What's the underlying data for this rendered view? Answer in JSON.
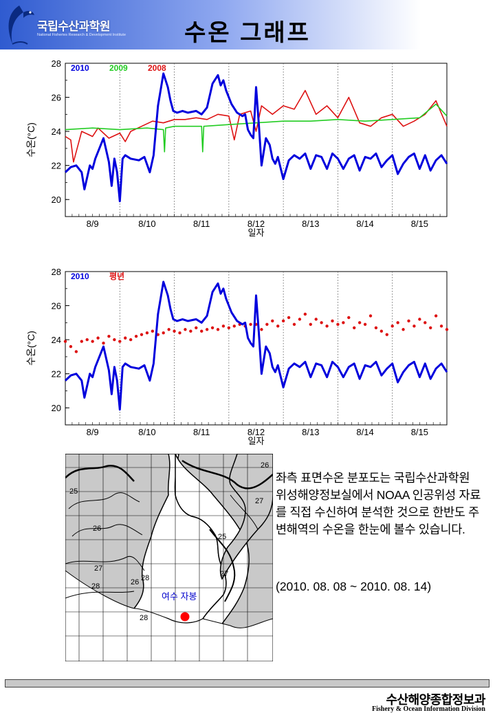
{
  "header": {
    "org_name": "국립수산과학원",
    "org_sub": "National Fisheries Research & Development Institute",
    "title": "수온 그래프"
  },
  "chart_data": [
    {
      "type": "line",
      "ylabel": "수온(°C)",
      "xlabel": "일자",
      "ylim": [
        19,
        28
      ],
      "yticks": [
        20,
        22,
        24,
        26,
        28
      ],
      "xlim": [
        0,
        7
      ],
      "xtick_labels": [
        "8/9",
        "8/10",
        "8/11",
        "8/12",
        "8/13",
        "8/14",
        "8/15"
      ],
      "grid": "vertical dotted day dividers",
      "legend_placement": "top-left",
      "series": [
        {
          "name": "2010",
          "color": "#0000dd",
          "x": [
            0,
            0.1,
            0.2,
            0.3,
            0.35,
            0.45,
            0.5,
            0.55,
            0.6,
            0.7,
            0.8,
            0.85,
            0.9,
            0.95,
            1.0,
            1.05,
            1.1,
            1.2,
            1.35,
            1.45,
            1.55,
            1.62,
            1.7,
            1.8,
            1.88,
            1.93,
            1.98,
            2.05,
            2.15,
            2.25,
            2.4,
            2.5,
            2.6,
            2.7,
            2.8,
            2.85,
            2.9,
            2.95,
            3.05,
            3.15,
            3.25,
            3.3,
            3.35,
            3.4,
            3.45,
            3.5,
            3.55,
            3.6,
            3.68,
            3.75,
            3.8,
            3.85,
            3.9,
            4.0,
            4.1,
            4.2,
            4.3,
            4.4,
            4.5,
            4.6,
            4.7,
            4.8,
            4.9,
            5.0,
            5.1,
            5.2,
            5.3,
            5.4,
            5.5,
            5.6,
            5.7,
            5.8,
            5.9,
            6.0,
            6.1,
            6.2,
            6.3,
            6.4,
            6.5,
            6.6,
            6.7,
            6.8,
            6.9,
            7.0
          ],
          "y": [
            21.6,
            21.9,
            22.0,
            21.6,
            20.6,
            22.0,
            21.8,
            22.4,
            22.8,
            23.6,
            22.2,
            20.8,
            22.4,
            21.6,
            19.9,
            22.4,
            22.6,
            22.4,
            22.3,
            22.5,
            21.6,
            22.6,
            25.5,
            27.4,
            26.6,
            25.8,
            25.2,
            25.1,
            25.2,
            25.1,
            25.2,
            25.0,
            25.4,
            26.8,
            27.3,
            26.7,
            27.0,
            26.4,
            25.6,
            25.1,
            24.9,
            25.0,
            24.1,
            23.8,
            23.6,
            26.6,
            24.4,
            22.0,
            23.6,
            23.2,
            22.4,
            22.1,
            22.5,
            21.2,
            22.3,
            22.6,
            22.4,
            22.7,
            21.8,
            22.6,
            22.5,
            21.8,
            22.7,
            22.4,
            21.8,
            22.4,
            22.6,
            21.7,
            22.5,
            22.4,
            22.7,
            21.9,
            22.3,
            22.6,
            21.5,
            22.1,
            22.5,
            22.7,
            21.8,
            22.6,
            21.7,
            22.3,
            22.6,
            22.1
          ]
        },
        {
          "name": "2009",
          "color": "#22cc22",
          "x": [
            0,
            0.5,
            1.0,
            1.5,
            1.8,
            1.82,
            1.84,
            2.0,
            2.4,
            2.5,
            2.52,
            2.54,
            3.0,
            3.5,
            4.0,
            4.5,
            5.0,
            5.5,
            6.0,
            6.5,
            6.8,
            7.0
          ],
          "y": [
            24.1,
            24.2,
            24.1,
            24.2,
            24.1,
            22.8,
            24.2,
            24.3,
            24.3,
            24.3,
            22.8,
            24.3,
            24.4,
            24.5,
            24.6,
            24.6,
            24.7,
            24.6,
            24.7,
            24.8,
            25.6,
            24.9
          ]
        },
        {
          "name": "2008",
          "color": "#dd1111",
          "x": [
            0,
            0.1,
            0.15,
            0.3,
            0.5,
            0.6,
            0.8,
            1.0,
            1.1,
            1.2,
            1.4,
            1.6,
            1.8,
            2.0,
            2.2,
            2.4,
            2.6,
            2.8,
            3.0,
            3.1,
            3.2,
            3.4,
            3.5,
            3.6,
            3.8,
            4.0,
            4.2,
            4.4,
            4.6,
            4.8,
            5.0,
            5.2,
            5.4,
            5.6,
            5.8,
            6.0,
            6.2,
            6.4,
            6.6,
            6.8,
            7.0
          ],
          "y": [
            23.7,
            23.5,
            22.2,
            24.0,
            23.7,
            24.2,
            23.6,
            23.9,
            23.4,
            24.0,
            24.3,
            24.6,
            24.5,
            24.7,
            24.7,
            24.8,
            24.7,
            25.0,
            24.9,
            23.5,
            25.0,
            25.2,
            24.0,
            25.5,
            25.0,
            25.5,
            25.3,
            26.4,
            25.0,
            25.5,
            24.8,
            26.0,
            24.5,
            24.3,
            24.8,
            25.0,
            24.3,
            24.6,
            25.0,
            25.8,
            24.3
          ]
        }
      ]
    },
    {
      "type": "line",
      "ylabel": "수온(°C)",
      "xlabel": "일자",
      "ylim": [
        19,
        28
      ],
      "yticks": [
        20,
        22,
        24,
        26,
        28
      ],
      "xlim": [
        0,
        7
      ],
      "xtick_labels": [
        "8/9",
        "8/10",
        "8/11",
        "8/12",
        "8/13",
        "8/14",
        "8/15"
      ],
      "grid": "vertical dotted day dividers",
      "legend_placement": "top-left",
      "series": [
        {
          "name": "2010",
          "color": "#0000dd",
          "x": [
            0,
            0.1,
            0.2,
            0.3,
            0.35,
            0.45,
            0.5,
            0.55,
            0.6,
            0.7,
            0.8,
            0.85,
            0.9,
            0.95,
            1.0,
            1.05,
            1.1,
            1.2,
            1.35,
            1.45,
            1.55,
            1.62,
            1.7,
            1.8,
            1.88,
            1.93,
            1.98,
            2.05,
            2.15,
            2.25,
            2.4,
            2.5,
            2.6,
            2.7,
            2.8,
            2.85,
            2.9,
            2.95,
            3.05,
            3.15,
            3.25,
            3.3,
            3.35,
            3.4,
            3.45,
            3.5,
            3.55,
            3.6,
            3.68,
            3.75,
            3.8,
            3.85,
            3.9,
            4.0,
            4.1,
            4.2,
            4.3,
            4.4,
            4.5,
            4.6,
            4.7,
            4.8,
            4.9,
            5.0,
            5.1,
            5.2,
            5.3,
            5.4,
            5.5,
            5.6,
            5.7,
            5.8,
            5.9,
            6.0,
            6.1,
            6.2,
            6.3,
            6.4,
            6.5,
            6.6,
            6.7,
            6.8,
            6.9,
            7.0
          ],
          "y": [
            21.6,
            21.9,
            22.0,
            21.6,
            20.6,
            22.0,
            21.8,
            22.4,
            22.8,
            23.6,
            22.2,
            20.8,
            22.4,
            21.6,
            19.9,
            22.4,
            22.6,
            22.4,
            22.3,
            22.5,
            21.6,
            22.6,
            25.5,
            27.4,
            26.6,
            25.8,
            25.2,
            25.1,
            25.2,
            25.1,
            25.2,
            25.0,
            25.4,
            26.8,
            27.3,
            26.7,
            27.0,
            26.4,
            25.6,
            25.1,
            24.9,
            25.0,
            24.1,
            23.8,
            23.6,
            26.6,
            24.4,
            22.0,
            23.6,
            23.2,
            22.4,
            22.1,
            22.5,
            21.2,
            22.3,
            22.6,
            22.4,
            22.7,
            21.8,
            22.6,
            22.5,
            21.8,
            22.7,
            22.4,
            21.8,
            22.4,
            22.6,
            21.7,
            22.5,
            22.4,
            22.7,
            21.9,
            22.3,
            22.6,
            21.5,
            22.1,
            22.5,
            22.7,
            21.8,
            22.6,
            21.7,
            22.3,
            22.6,
            22.1
          ]
        },
        {
          "name": "평년",
          "color": "#dd1111",
          "style": "dots",
          "x": [
            0,
            0.1,
            0.2,
            0.3,
            0.4,
            0.5,
            0.6,
            0.7,
            0.8,
            0.9,
            1.0,
            1.1,
            1.2,
            1.3,
            1.4,
            1.5,
            1.6,
            1.7,
            1.8,
            1.9,
            2.0,
            2.1,
            2.2,
            2.3,
            2.4,
            2.5,
            2.6,
            2.7,
            2.8,
            2.9,
            3.0,
            3.1,
            3.2,
            3.3,
            3.4,
            3.5,
            3.6,
            3.7,
            3.8,
            3.9,
            4.0,
            4.1,
            4.2,
            4.3,
            4.4,
            4.5,
            4.6,
            4.7,
            4.8,
            4.9,
            5.0,
            5.1,
            5.2,
            5.3,
            5.4,
            5.5,
            5.6,
            5.7,
            5.8,
            5.9,
            6.0,
            6.1,
            6.2,
            6.3,
            6.4,
            6.5,
            6.6,
            6.7,
            6.8,
            6.9,
            7.0
          ],
          "y": [
            23.9,
            23.6,
            23.3,
            23.9,
            24.0,
            23.9,
            24.1,
            23.8,
            24.2,
            24.0,
            23.9,
            24.1,
            24.0,
            24.2,
            24.3,
            24.4,
            24.5,
            24.3,
            24.4,
            24.6,
            24.5,
            24.4,
            24.6,
            24.5,
            24.7,
            24.5,
            24.6,
            24.7,
            24.6,
            24.8,
            24.7,
            24.8,
            24.9,
            24.8,
            24.9,
            24.9,
            24.6,
            24.9,
            25.1,
            24.8,
            25.1,
            25.3,
            24.9,
            25.2,
            25.5,
            24.9,
            25.2,
            25.0,
            24.8,
            25.1,
            24.9,
            25.0,
            25.3,
            24.7,
            25.0,
            24.9,
            25.4,
            24.7,
            24.5,
            24.3,
            24.8,
            25.0,
            24.6,
            25.1,
            24.8,
            25.2,
            25.0,
            24.7,
            25.4,
            24.8,
            24.6
          ]
        }
      ]
    }
  ],
  "map": {
    "isotherm_labels": [
      "25",
      "26",
      "27",
      "28",
      "25",
      "26",
      "27",
      "28",
      "28",
      "26",
      "27"
    ],
    "station_label": "여수 자봉"
  },
  "description": {
    "text": "좌측 표면수온 분포도는 국립수산과학원 위성해양정보실에서 NOAA 인공위성 자료를 직접 수신하여 분석한 것으로 한반도 주변해역의 수온을 한눈에 볼수 있습니다.",
    "period": "(2010. 08. 08 ~ 2010. 08. 14)"
  },
  "footer": {
    "division_kr": "수산해양종합정보과",
    "division_en": "Fishery & Ocean Information Division"
  }
}
